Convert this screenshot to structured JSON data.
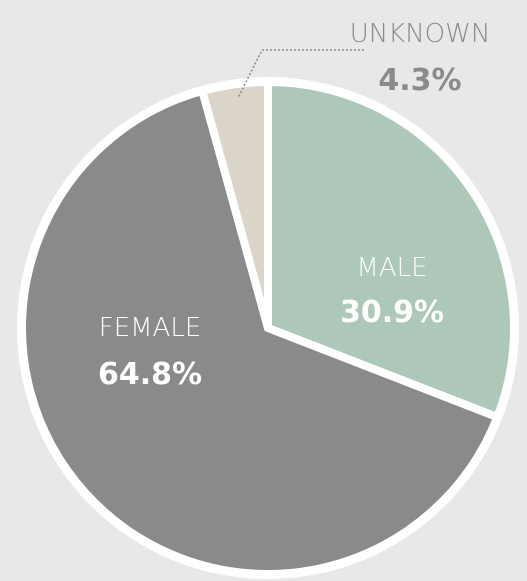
{
  "chart_data": {
    "type": "pie",
    "categories": [
      "MALE",
      "FEMALE",
      "UNKNOWN"
    ],
    "values": [
      30.9,
      64.8,
      4.3
    ],
    "value_labels": [
      "30.9%",
      "64.8%",
      "4.3%"
    ],
    "colors": [
      "#adc8b8",
      "#8a8a8a",
      "#dbd4c9"
    ]
  }
}
